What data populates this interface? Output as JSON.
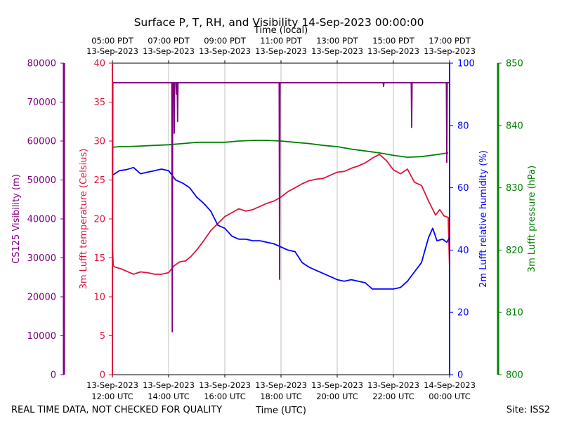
{
  "chart_data": {
    "type": "line",
    "title": "Surface P, T, RH, and Visibility 14-Sep-2023 00:00:00",
    "top_axis_title": "Time (local)",
    "bottom_axis_title": "Time (UTC)",
    "footer_left": "REAL TIME DATA, NOT CHECKED FOR QUALITY",
    "footer_right": "Site: ISS2",
    "x_range_hours": [
      0,
      12
    ],
    "bottom_ticks": [
      {
        "hour": 0,
        "line1": "13-Sep-2023",
        "line2": "12:00 UTC"
      },
      {
        "hour": 2,
        "line1": "13-Sep-2023",
        "line2": "14:00 UTC"
      },
      {
        "hour": 4,
        "line1": "13-Sep-2023",
        "line2": "16:00 UTC"
      },
      {
        "hour": 6,
        "line1": "13-Sep-2023",
        "line2": "18:00 UTC"
      },
      {
        "hour": 8,
        "line1": "13-Sep-2023",
        "line2": "20:00 UTC"
      },
      {
        "hour": 10,
        "line1": "13-Sep-2023",
        "line2": "22:00 UTC"
      },
      {
        "hour": 12,
        "line1": "14-Sep-2023",
        "line2": "00:00 UTC"
      }
    ],
    "top_ticks": [
      {
        "hour": 0,
        "line1": "05:00 PDT",
        "line2": "13-Sep-2023"
      },
      {
        "hour": 2,
        "line1": "07:00 PDT",
        "line2": "13-Sep-2023"
      },
      {
        "hour": 4,
        "line1": "09:00 PDT",
        "line2": "13-Sep-2023"
      },
      {
        "hour": 6,
        "line1": "11:00 PDT",
        "line2": "13-Sep-2023"
      },
      {
        "hour": 8,
        "line1": "13:00 PDT",
        "line2": "13-Sep-2023"
      },
      {
        "hour": 10,
        "line1": "15:00 PDT",
        "line2": "13-Sep-2023"
      },
      {
        "hour": 12,
        "line1": "17:00 PDT",
        "line2": "13-Sep-2023"
      }
    ],
    "axes": {
      "visibility": {
        "label": "CS125 Visibility (m)",
        "color": "#800080",
        "ylim": [
          0,
          80000
        ],
        "ticks": [
          "0",
          "10000",
          "20000",
          "30000",
          "40000",
          "50000",
          "60000",
          "70000",
          "80000"
        ]
      },
      "temperature": {
        "label": "3m Lufft temperature (Celsius)",
        "color": "#dc143c",
        "ylim": [
          0,
          40
        ],
        "ticks": [
          "0",
          "5",
          "10",
          "15",
          "20",
          "25",
          "30",
          "35",
          "40"
        ]
      },
      "humidity": {
        "label": "2m Lufft relative humidity (%)",
        "color": "#0000ff",
        "ylim": [
          0,
          100
        ],
        "ticks": [
          "0",
          "20",
          "40",
          "60",
          "80",
          "100"
        ]
      },
      "pressure": {
        "label": "3m Lufft pressure (hPa)",
        "color": "#008000",
        "ylim": [
          800,
          850
        ],
        "ticks": [
          "800",
          "810",
          "820",
          "830",
          "840",
          "850"
        ]
      }
    },
    "series": [
      {
        "name": "3m Lufft pressure (hPa)",
        "axis": "pressure",
        "color": "#008000",
        "x": [
          0,
          0.25,
          0.5,
          1,
          1.5,
          2,
          2.5,
          3,
          3.5,
          4,
          4.5,
          5,
          5.5,
          6,
          6.5,
          7,
          7.5,
          8,
          8.5,
          9,
          9.5,
          10,
          10.5,
          11,
          11.5,
          11.95
        ],
        "y": [
          836.5,
          836.6,
          836.6,
          836.7,
          836.8,
          836.9,
          837.1,
          837.3,
          837.3,
          837.3,
          837.5,
          837.6,
          837.6,
          837.5,
          837.3,
          837.1,
          836.8,
          836.6,
          836.2,
          835.9,
          835.6,
          835.2,
          834.9,
          835.0,
          835.3,
          835.6
        ]
      },
      {
        "name": "3m Lufft temperature (Celsius)",
        "axis": "temperature",
        "color": "#dc143c",
        "x": [
          0,
          0.03,
          0.1,
          0.3,
          0.5,
          0.75,
          1,
          1.25,
          1.5,
          1.75,
          2,
          2.2,
          2.4,
          2.6,
          2.8,
          3,
          3.25,
          3.5,
          3.75,
          4,
          4.25,
          4.5,
          4.75,
          5,
          5.25,
          5.5,
          5.75,
          6,
          6.25,
          6.5,
          6.75,
          7,
          7.25,
          7.5,
          7.75,
          8,
          8.25,
          8.5,
          8.75,
          9,
          9.25,
          9.5,
          9.75,
          10,
          10.25,
          10.5,
          10.75,
          11,
          11.25,
          11.5,
          11.65,
          11.8,
          11.95,
          12
        ],
        "y": [
          16.5,
          14.0,
          13.8,
          13.6,
          13.3,
          12.9,
          13.2,
          13.1,
          12.9,
          12.9,
          13.1,
          14.0,
          14.5,
          14.6,
          15.2,
          16.0,
          17.2,
          18.5,
          19.4,
          20.3,
          20.8,
          21.3,
          21.0,
          21.2,
          21.6,
          22.0,
          22.3,
          22.8,
          23.5,
          24.0,
          24.5,
          24.9,
          25.1,
          25.2,
          25.6,
          26.0,
          26.1,
          26.5,
          26.8,
          27.2,
          27.8,
          28.3,
          27.5,
          26.3,
          25.8,
          26.4,
          24.7,
          24.3,
          22.3,
          20.5,
          21.2,
          20.4,
          20.2,
          13.5
        ]
      },
      {
        "name": "2m Lufft relative humidity (%)",
        "axis": "humidity",
        "color": "#0000ff",
        "x": [
          0,
          0.25,
          0.5,
          0.75,
          1,
          1.25,
          1.5,
          1.75,
          2,
          2.25,
          2.5,
          2.75,
          3,
          3.25,
          3.5,
          3.75,
          4,
          4.25,
          4.5,
          4.75,
          5,
          5.25,
          5.5,
          5.75,
          6,
          6.25,
          6.5,
          6.75,
          7,
          7.25,
          7.5,
          7.75,
          8,
          8.25,
          8.5,
          8.75,
          9,
          9.25,
          9.5,
          9.75,
          10,
          10.25,
          10.5,
          10.75,
          11,
          11.25,
          11.4,
          11.55,
          11.75,
          11.9,
          12
        ],
        "y": [
          64,
          65.5,
          65.8,
          66.5,
          64.5,
          65.0,
          65.5,
          66.0,
          65.5,
          62.5,
          61.5,
          60,
          57,
          55,
          52.5,
          48,
          47,
          44.5,
          43.5,
          43.5,
          43.0,
          43.0,
          42.5,
          42.0,
          41.0,
          40.0,
          39.5,
          36.0,
          34.5,
          33.5,
          32.5,
          31.5,
          30.5,
          30.0,
          30.5,
          30.0,
          29.5,
          27.5,
          27.5,
          27.5,
          27.5,
          28.0,
          30.0,
          33.0,
          36.0,
          44.0,
          47.0,
          43.0,
          43.5,
          42.5,
          44.0
        ]
      },
      {
        "name": "CS125 Visibility (m)",
        "axis": "visibility",
        "color": "#800080",
        "baseline": 75000,
        "dips": [
          {
            "hour": 0.0,
            "min": 0
          },
          {
            "hour": 2.13,
            "min": 11000
          },
          {
            "hour": 2.2,
            "min": 62000
          },
          {
            "hour": 2.28,
            "min": 72000
          },
          {
            "hour": 2.32,
            "min": 65000
          },
          {
            "hour": 5.95,
            "min": 24500
          },
          {
            "hour": 9.65,
            "min": 74000
          },
          {
            "hour": 10.65,
            "min": 63500
          },
          {
            "hour": 11.9,
            "min": 54500
          }
        ]
      }
    ]
  }
}
